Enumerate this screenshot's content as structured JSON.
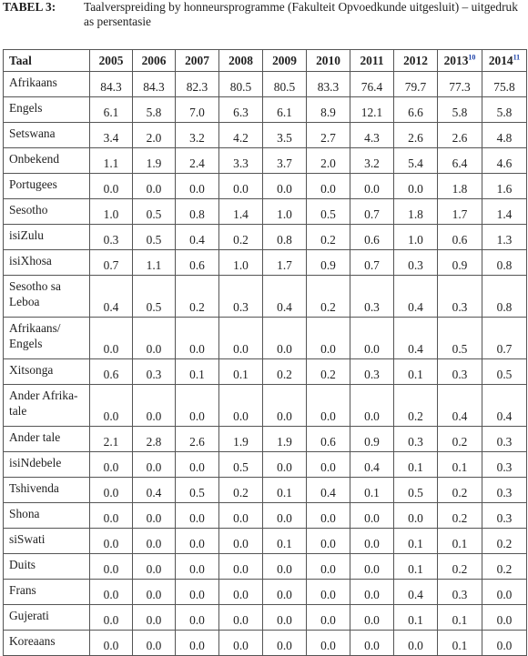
{
  "caption": {
    "label": "TABEL 3:",
    "text": "Taalverspreiding by honneursprogramme (Fakulteit Opvoedkunde uitgesluit) – uitgedruk as persentasie"
  },
  "table": {
    "lang_header": "Taal",
    "years": [
      {
        "label": "2005",
        "fn": ""
      },
      {
        "label": "2006",
        "fn": ""
      },
      {
        "label": "2007",
        "fn": ""
      },
      {
        "label": "2008",
        "fn": ""
      },
      {
        "label": "2009",
        "fn": ""
      },
      {
        "label": "2010",
        "fn": ""
      },
      {
        "label": "2011",
        "fn": ""
      },
      {
        "label": "2012",
        "fn": ""
      },
      {
        "label": "2013",
        "fn": "10"
      },
      {
        "label": "2014",
        "fn": "11"
      }
    ],
    "rows": [
      {
        "lang": "Afrikaans",
        "values": [
          "84.3",
          "84.3",
          "82.3",
          "80.5",
          "80.5",
          "83.3",
          "76.4",
          "79.7",
          "77.3",
          "75.8"
        ]
      },
      {
        "lang": "Engels",
        "values": [
          "6.1",
          "5.8",
          "7.0",
          "6.3",
          "6.1",
          "8.9",
          "12.1",
          "6.6",
          "5.8",
          "5.8"
        ]
      },
      {
        "lang": "Setswana",
        "values": [
          "3.4",
          "2.0",
          "3.2",
          "4.2",
          "3.5",
          "2.7",
          "4.3",
          "2.6",
          "2.6",
          "4.8"
        ]
      },
      {
        "lang": "Onbekend",
        "values": [
          "1.1",
          "1.9",
          "2.4",
          "3.3",
          "3.7",
          "2.0",
          "3.2",
          "5.4",
          "6.4",
          "4.6"
        ]
      },
      {
        "lang": "Portugees",
        "values": [
          "0.0",
          "0.0",
          "0.0",
          "0.0",
          "0.0",
          "0.0",
          "0.0",
          "0.0",
          "1.8",
          "1.6"
        ]
      },
      {
        "lang": "Sesotho",
        "values": [
          "1.0",
          "0.5",
          "0.8",
          "1.4",
          "1.0",
          "0.5",
          "0.7",
          "1.8",
          "1.7",
          "1.4"
        ]
      },
      {
        "lang": "isiZulu",
        "values": [
          "0.3",
          "0.5",
          "0.4",
          "0.2",
          "0.8",
          "0.2",
          "0.6",
          "1.0",
          "0.6",
          "1.3"
        ]
      },
      {
        "lang": "isiXhosa",
        "values": [
          "0.7",
          "1.1",
          "0.6",
          "1.0",
          "1.7",
          "0.9",
          "0.7",
          "0.3",
          "0.9",
          "0.8"
        ]
      },
      {
        "lang": "Sesotho sa Leboa",
        "values": [
          "0.4",
          "0.5",
          "0.2",
          "0.3",
          "0.4",
          "0.2",
          "0.3",
          "0.4",
          "0.3",
          "0.8"
        ]
      },
      {
        "lang": "Afrikaans/ Engels",
        "values": [
          "0.0",
          "0.0",
          "0.0",
          "0.0",
          "0.0",
          "0.0",
          "0.0",
          "0.4",
          "0.5",
          "0.7"
        ]
      },
      {
        "lang": "Xitsonga",
        "values": [
          "0.6",
          "0.3",
          "0.1",
          "0.1",
          "0.2",
          "0.2",
          "0.3",
          "0.1",
          "0.3",
          "0.5"
        ]
      },
      {
        "lang": "Ander Afrika-tale",
        "values": [
          "0.0",
          "0.0",
          "0.0",
          "0.0",
          "0.0",
          "0.0",
          "0.0",
          "0.2",
          "0.4",
          "0.4"
        ]
      },
      {
        "lang": "Ander tale",
        "values": [
          "2.1",
          "2.8",
          "2.6",
          "1.9",
          "1.9",
          "0.6",
          "0.9",
          "0.3",
          "0.2",
          "0.3"
        ]
      },
      {
        "lang": "isiNdebele",
        "values": [
          "0.0",
          "0.0",
          "0.0",
          "0.5",
          "0.0",
          "0.0",
          "0.4",
          "0.1",
          "0.1",
          "0.3"
        ]
      },
      {
        "lang": "Tshivenda",
        "values": [
          "0.0",
          "0.4",
          "0.5",
          "0.2",
          "0.1",
          "0.4",
          "0.1",
          "0.5",
          "0.2",
          "0.3"
        ]
      },
      {
        "lang": "Shona",
        "values": [
          "0.0",
          "0.0",
          "0.0",
          "0.0",
          "0.0",
          "0.0",
          "0.0",
          "0.0",
          "0.2",
          "0.3"
        ]
      },
      {
        "lang": "siSwati",
        "values": [
          "0.0",
          "0.0",
          "0.0",
          "0.0",
          "0.1",
          "0.0",
          "0.0",
          "0.1",
          "0.1",
          "0.2"
        ]
      },
      {
        "lang": "Duits",
        "values": [
          "0.0",
          "0.0",
          "0.0",
          "0.0",
          "0.0",
          "0.0",
          "0.0",
          "0.1",
          "0.2",
          "0.2"
        ]
      },
      {
        "lang": "Frans",
        "values": [
          "0.0",
          "0.0",
          "0.0",
          "0.0",
          "0.0",
          "0.0",
          "0.0",
          "0.4",
          "0.3",
          "0.0"
        ]
      },
      {
        "lang": "Gujerati",
        "values": [
          "0.0",
          "0.0",
          "0.0",
          "0.0",
          "0.0",
          "0.0",
          "0.0",
          "0.1",
          "0.1",
          "0.0"
        ]
      },
      {
        "lang": "Koreaans",
        "values": [
          "0.0",
          "0.0",
          "0.0",
          "0.0",
          "0.0",
          "0.0",
          "0.0",
          "0.0",
          "0.1",
          "0.0"
        ]
      }
    ]
  }
}
